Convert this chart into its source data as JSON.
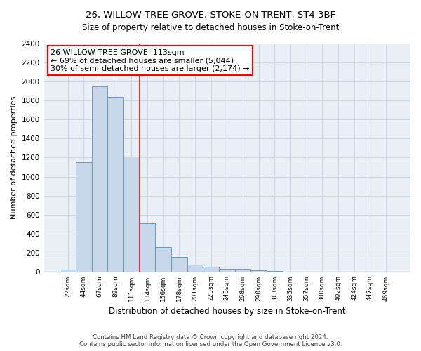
{
  "title": "26, WILLOW TREE GROVE, STOKE-ON-TRENT, ST4 3BF",
  "subtitle": "Size of property relative to detached houses in Stoke-on-Trent",
  "xlabel": "Distribution of detached houses by size in Stoke-on-Trent",
  "ylabel": "Number of detached properties",
  "categories": [
    "22sqm",
    "44sqm",
    "67sqm",
    "89sqm",
    "111sqm",
    "134sqm",
    "156sqm",
    "178sqm",
    "201sqm",
    "223sqm",
    "246sqm",
    "268sqm",
    "290sqm",
    "313sqm",
    "335sqm",
    "357sqm",
    "380sqm",
    "402sqm",
    "424sqm",
    "447sqm",
    "469sqm"
  ],
  "values": [
    25,
    1150,
    1950,
    1840,
    1210,
    510,
    260,
    155,
    80,
    55,
    35,
    35,
    20,
    8,
    5,
    5,
    5,
    2,
    2,
    2,
    0
  ],
  "bar_color": "#c8d8ea",
  "bar_edge_color": "#6699bb",
  "vline_bin_index": 4,
  "vline_color": "red",
  "annotation_text": "26 WILLOW TREE GROVE: 113sqm\n← 69% of detached houses are smaller (5,044)\n30% of semi-detached houses are larger (2,174) →",
  "annotation_box_color": "white",
  "annotation_box_edge_color": "red",
  "ylim": [
    0,
    2400
  ],
  "yticks": [
    0,
    200,
    400,
    600,
    800,
    1000,
    1200,
    1400,
    1600,
    1800,
    2000,
    2200,
    2400
  ],
  "background_color": "#eaeff5",
  "grid_color": "#d0d8e4",
  "title_fontsize": 9.5,
  "subtitle_fontsize": 8.5,
  "footer_line1": "Contains HM Land Registry data © Crown copyright and database right 2024.",
  "footer_line2": "Contains public sector information licensed under the Open Government Licence v3.0."
}
